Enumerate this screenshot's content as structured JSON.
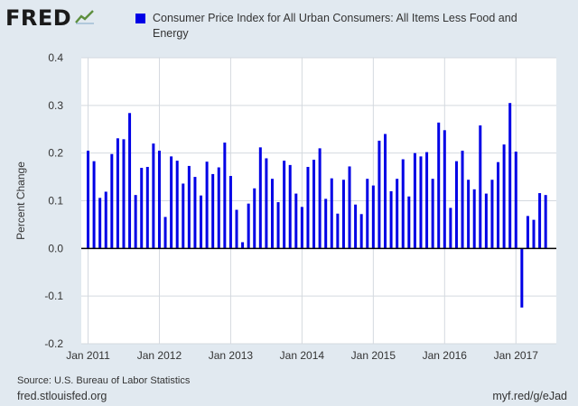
{
  "header": {
    "logo_text": "FRED",
    "logo_icon": "line-chart-icon"
  },
  "colors": {
    "series": "#0000e6",
    "plot_bg": "#ffffff",
    "page_bg": "#e1e9f0",
    "grid": "#d4d9df"
  },
  "chart_data": {
    "type": "bar",
    "title": "",
    "legend": [
      "Consumer Price Index for All Urban Consumers: All Items Less Food and Energy"
    ],
    "legend_placement": "top",
    "ylabel": "Percent Change",
    "xlabel": "",
    "ylim": [
      -0.2,
      0.4
    ],
    "yticks": [
      -0.2,
      -0.1,
      0.0,
      0.1,
      0.2,
      0.3,
      0.4
    ],
    "ytick_labels": [
      "-0.2",
      "-0.1",
      "0.0",
      "0.1",
      "0.2",
      "0.3",
      "0.4"
    ],
    "xticks": [
      "Jan 2011",
      "Jan 2012",
      "Jan 2013",
      "Jan 2014",
      "Jan 2015",
      "Jan 2016",
      "Jan 2017"
    ],
    "grid": true,
    "start_period": "Jan 2011",
    "frequency": "monthly",
    "series": [
      {
        "name": "Consumer Price Index for All Urban Consumers: All Items Less Food and Energy",
        "values": [
          0.205,
          0.183,
          0.106,
          0.119,
          0.198,
          0.231,
          0.229,
          0.284,
          0.112,
          0.169,
          0.171,
          0.22,
          0.205,
          0.066,
          0.193,
          0.184,
          0.136,
          0.173,
          0.15,
          0.111,
          0.182,
          0.156,
          0.17,
          0.222,
          0.152,
          0.081,
          0.013,
          0.094,
          0.126,
          0.212,
          0.189,
          0.146,
          0.097,
          0.184,
          0.175,
          0.115,
          0.087,
          0.171,
          0.186,
          0.21,
          0.104,
          0.147,
          0.073,
          0.144,
          0.172,
          0.092,
          0.072,
          0.146,
          0.132,
          0.226,
          0.24,
          0.12,
          0.146,
          0.187,
          0.109,
          0.2,
          0.193,
          0.202,
          0.146,
          0.264,
          0.248,
          0.085,
          0.183,
          0.205,
          0.144,
          0.124,
          0.258,
          0.115,
          0.144,
          0.181,
          0.218,
          0.305,
          0.203,
          -0.124,
          0.068,
          0.06,
          0.116,
          0.112
        ]
      }
    ]
  },
  "footer": {
    "source": "Source: U.S. Bureau of Labor Statistics",
    "site": "fred.stlouisfed.org",
    "link": "myf.red/g/eJad"
  }
}
